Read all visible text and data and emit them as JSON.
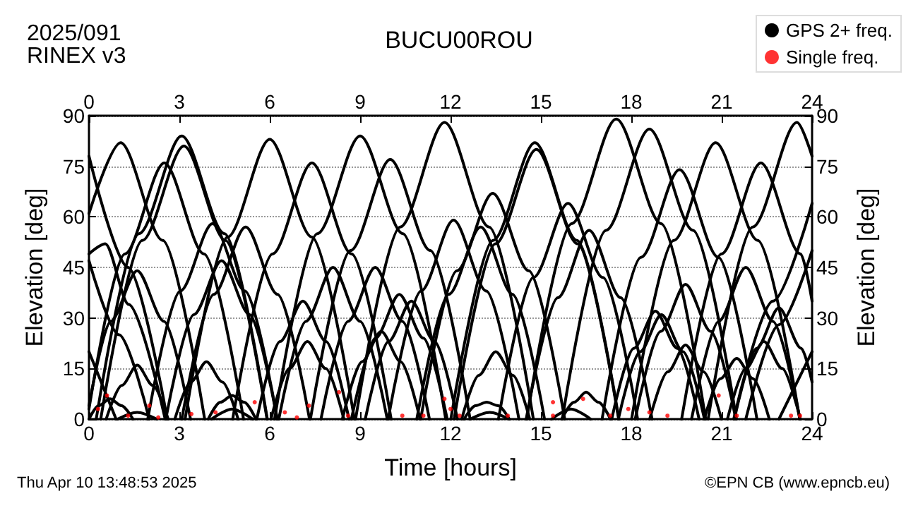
{
  "chart_data": {
    "type": "line",
    "title": "BUCU00ROU",
    "annotations": [
      "2025/091",
      "RINEX v3",
      "Thu Apr 10 13:48:53 2025",
      "©EPN CB (www.epncb.eu)"
    ],
    "xlabel": "Time [hours]",
    "ylabel": "Elevation [deg]",
    "y2label": "Elevation [deg]",
    "xlim": [
      0,
      24
    ],
    "xticks": [
      0,
      3,
      6,
      9,
      12,
      15,
      18,
      21,
      24
    ],
    "x2lim": [
      0,
      24
    ],
    "x2ticks": [
      0,
      3,
      6,
      9,
      12,
      15,
      18,
      21,
      24
    ],
    "ylim": [
      0,
      90
    ],
    "yticks": [
      0,
      15,
      30,
      45,
      60,
      75,
      90
    ],
    "y2lim": [
      0,
      90
    ],
    "y2ticks": [
      0,
      15,
      30,
      45,
      60,
      75,
      90
    ],
    "grid": "y",
    "legend": "top right",
    "line_style": "solid",
    "series": [
      {
        "name": "GPS 2+ freq.",
        "color": "#000000",
        "x": [
          0,
          1.05,
          2.45,
          3.84
        ],
        "values": [
          61,
          82,
          53,
          0
        ]
      },
      {
        "color": "#000000",
        "x": [
          0.24,
          1.66,
          3.08,
          4.5,
          5.92
        ],
        "values": [
          0,
          55,
          84,
          55,
          0
        ]
      },
      {
        "color": "#000000",
        "x": [
          0.39,
          1.77,
          3.15,
          4.53,
          5.91
        ],
        "values": [
          0,
          53,
          81,
          53,
          0
        ]
      },
      {
        "color": "#000000",
        "x": [
          0,
          1.19,
          2.5,
          3.82,
          5.13
        ],
        "values": [
          3,
          49,
          76,
          49,
          0
        ]
      },
      {
        "color": "#000000",
        "x": [
          3.19,
          4.6,
          6.0,
          7.4,
          8.81
        ],
        "values": [
          0,
          54,
          83,
          54,
          0
        ]
      },
      {
        "color": "#000000",
        "x": [
          4.77,
          6.09,
          7.4,
          8.72,
          10.03
        ],
        "values": [
          0,
          49,
          76,
          49,
          0
        ]
      },
      {
        "color": "#000000",
        "x": [
          0,
          0.54,
          1.32,
          2.53
        ],
        "values": [
          49,
          52,
          34,
          0
        ]
      },
      {
        "color": "#000000",
        "x": [
          0,
          0.72,
          1.6,
          2.49,
          3.37
        ],
        "values": [
          4,
          29,
          44,
          29,
          0
        ]
      },
      {
        "color": "#000000",
        "x": [
          1.95,
          3.03,
          4.1,
          5.18,
          6.25
        ],
        "values": [
          0,
          38,
          58,
          38,
          0
        ]
      },
      {
        "color": "#000000",
        "x": [
          3.08,
          4.14,
          5.2,
          6.26,
          7.32
        ],
        "values": [
          0,
          37,
          57,
          37,
          0
        ]
      },
      {
        "color": "#000000",
        "x": [
          2.55,
          3.48,
          4.4,
          5.33,
          6.25
        ],
        "values": [
          0,
          31,
          47,
          31,
          0
        ]
      },
      {
        "color": "#000000",
        "x": [
          6.3,
          7.2,
          8.1,
          9.0,
          9.9
        ],
        "values": [
          0,
          29,
          45,
          29,
          0
        ]
      },
      {
        "color": "#000000",
        "x": [
          5.57,
          6.34,
          7.1,
          7.87,
          8.63
        ],
        "values": [
          0,
          23,
          35,
          23,
          0
        ]
      },
      {
        "color": "#000000",
        "x": [
          6.04,
          6.65,
          7.25,
          7.86,
          8.46
        ],
        "values": [
          0,
          15,
          23,
          15,
          0
        ]
      },
      {
        "color": "#000000",
        "x": [
          0.57,
          1.09,
          1.6,
          2.12,
          2.63
        ],
        "values": [
          0,
          10,
          16,
          10,
          0
        ]
      },
      {
        "color": "#000000",
        "x": [
          2.85,
          3.38,
          3.9,
          4.43,
          4.95
        ],
        "values": [
          0,
          11,
          17,
          11,
          0
        ]
      },
      {
        "color": "#000000",
        "x": [
          0,
          0.32,
          0.7,
          1.08,
          1.46
        ],
        "values": [
          0,
          4,
          6,
          4,
          0
        ]
      },
      {
        "color": "#000000",
        "x": [
          0.95,
          1.6,
          2.25
        ],
        "values": [
          0,
          2,
          0
        ]
      },
      {
        "color": "#000000",
        "x": [
          3.96,
          4.36,
          4.75,
          5.15,
          5.54
        ],
        "values": [
          0,
          5,
          7,
          5,
          0
        ]
      },
      {
        "color": "#000000",
        "x": [
          4.07,
          4.75,
          5.43
        ],
        "values": [
          0,
          3,
          0
        ]
      },
      {
        "color": "#000000",
        "x": [
          6.16,
          7.58,
          9.0,
          10.42,
          11.84
        ],
        "values": [
          0,
          55,
          84,
          55,
          0
        ]
      },
      {
        "color": "#000000",
        "x": [
          7.35,
          8.68,
          10.0,
          11.33,
          12.65
        ],
        "values": [
          0,
          50,
          77,
          50,
          0
        ]
      },
      {
        "color": "#000000",
        "x": [
          8.85,
          10.33,
          11.8,
          13.28,
          14.75
        ],
        "values": [
          0,
          57,
          88,
          57,
          0
        ]
      },
      {
        "color": "#000000",
        "x": [
          12.01,
          13.41,
          14.8,
          16.2,
          17.59
        ],
        "values": [
          0,
          53,
          82,
          53,
          0
        ]
      },
      {
        "color": "#000000",
        "x": [
          12.12,
          13.49,
          14.85,
          16.22,
          17.58
        ],
        "values": [
          0,
          52,
          80,
          52,
          0
        ]
      },
      {
        "color": "#000000",
        "x": [
          11.01,
          12.21,
          13.4,
          14.6,
          15.79
        ],
        "values": [
          0,
          44,
          67,
          44,
          0
        ]
      },
      {
        "color": "#000000",
        "x": [
          9.93,
          11.02,
          12.1,
          13.19,
          14.27
        ],
        "values": [
          0,
          38,
          59,
          38,
          0
        ]
      },
      {
        "color": "#000000",
        "x": [
          10.88,
          11.94,
          13.0,
          14.06,
          15.12
        ],
        "values": [
          0,
          37,
          57,
          37,
          0
        ]
      },
      {
        "color": "#000000",
        "x": [
          13.59,
          14.75,
          15.9,
          17.06,
          18.21
        ],
        "values": [
          0,
          42,
          64,
          42,
          0
        ]
      },
      {
        "color": "#000000",
        "x": [
          7.7,
          8.6,
          9.5,
          10.4,
          11.3
        ],
        "values": [
          0,
          29,
          45,
          29,
          0
        ]
      },
      {
        "color": "#000000",
        "x": [
          8.71,
          9.51,
          10.3,
          11.1,
          11.89
        ],
        "values": [
          0,
          24,
          37,
          24,
          0
        ]
      },
      {
        "color": "#000000",
        "x": [
          9.17,
          9.94,
          10.7,
          11.47,
          12.23
        ],
        "values": [
          0,
          23,
          35,
          23,
          0
        ]
      },
      {
        "color": "#000000",
        "x": [
          8.41,
          9.06,
          9.7,
          10.35,
          10.99
        ],
        "values": [
          0,
          17,
          26,
          17,
          0
        ]
      },
      {
        "color": "#000000",
        "x": [
          12.37,
          12.94,
          13.5,
          14.07,
          14.63
        ],
        "values": [
          0,
          13,
          20,
          13,
          0
        ]
      },
      {
        "color": "#000000",
        "x": [
          12.45,
          12.83,
          13.2,
          13.58,
          13.95
        ],
        "values": [
          0,
          4,
          5,
          4,
          0
        ]
      },
      {
        "color": "#000000",
        "x": [
          12.65,
          13.3,
          13.95
        ],
        "values": [
          0,
          2,
          0
        ]
      },
      {
        "color": "#000000",
        "x": [
          14.53,
          16.02,
          17.5,
          18.99,
          20.47
        ],
        "values": [
          0,
          58,
          89,
          58,
          0
        ]
      },
      {
        "color": "#000000",
        "x": [
          15.71,
          17.16,
          18.6,
          20.05,
          21.49
        ],
        "values": [
          0,
          56,
          86,
          56,
          0
        ]
      },
      {
        "color": "#000000",
        "x": [
          17.03,
          18.32,
          19.6,
          20.89,
          22.17
        ],
        "values": [
          0,
          48,
          74,
          48,
          0
        ]
      },
      {
        "color": "#000000",
        "x": [
          18.01,
          19.41,
          20.8,
          22.2,
          23.59
        ],
        "values": [
          0,
          53,
          82,
          53,
          0
        ]
      },
      {
        "color": "#000000",
        "x": [
          19.67,
          20.99,
          22.3,
          23.62,
          24
        ],
        "values": [
          0,
          49,
          76,
          49,
          35
        ]
      },
      {
        "color": "#000000",
        "x": [
          20.55,
          22.03,
          23.5,
          24
        ],
        "values": [
          0,
          57,
          88,
          78
        ]
      },
      {
        "color": "#000000",
        "x": [
          14.51,
          15.56,
          16.6,
          17.65,
          18.69
        ],
        "values": [
          0,
          36,
          56,
          36,
          0
        ]
      },
      {
        "color": "#000000",
        "x": [
          18.13,
          18.97,
          19.8,
          20.64,
          21.47
        ],
        "values": [
          0,
          26,
          40,
          26,
          0
        ]
      },
      {
        "color": "#000000",
        "x": [
          17.35,
          18.08,
          18.8,
          19.53,
          20.25
        ],
        "values": [
          0,
          21,
          32,
          21,
          0
        ]
      },
      {
        "color": "#000000",
        "x": [
          17.57,
          18.29,
          19.0,
          19.72,
          20.43
        ],
        "values": [
          0,
          20,
          31,
          20,
          0
        ]
      },
      {
        "color": "#000000",
        "x": [
          20.0,
          20.9,
          21.8,
          22.7,
          23.6
        ],
        "values": [
          0,
          29,
          45,
          29,
          0
        ]
      },
      {
        "color": "#000000",
        "x": [
          18.61,
          19.21,
          19.8,
          20.4,
          20.99
        ],
        "values": [
          0,
          14,
          22,
          14,
          0
        ]
      },
      {
        "color": "#000000",
        "x": [
          20.42,
          20.96,
          21.5,
          22.04,
          22.58
        ],
        "values": [
          0,
          12,
          18,
          12,
          0
        ]
      },
      {
        "color": "#000000",
        "x": [
          21.19,
          21.8,
          22.4,
          23.01,
          23.61
        ],
        "values": [
          0,
          15,
          23,
          15,
          0
        ]
      },
      {
        "color": "#000000",
        "x": [
          21.42,
          22.16,
          22.9,
          23.64,
          24
        ],
        "values": [
          0,
          21,
          33,
          21,
          11
        ]
      },
      {
        "color": "#000000",
        "x": [
          15.69,
          16.1,
          16.5,
          16.91,
          17.31
        ],
        "values": [
          0,
          5,
          8,
          5,
          0
        ]
      },
      {
        "color": "#000000",
        "x": [
          15.35,
          16.0,
          16.65
        ],
        "values": [
          0,
          3,
          0
        ]
      },
      {
        "color": "#000000",
        "x": [
          21.4,
          22.7,
          24
        ],
        "values": [
          0,
          35,
          64
        ]
      },
      {
        "color": "#000000",
        "x": [
          21.8,
          22.9,
          24
        ],
        "values": [
          0,
          28,
          50
        ]
      },
      {
        "color": "#000000",
        "x": [
          22.9,
          24
        ],
        "values": [
          0,
          20
        ]
      },
      {
        "color": "#000000",
        "x": [
          0,
          1.3,
          2.6
        ],
        "values": [
          78,
          45,
          0
        ]
      },
      {
        "color": "#000000",
        "x": [
          0,
          1.0,
          2.0
        ],
        "values": [
          47,
          25,
          0
        ]
      },
      {
        "color": "#000000",
        "x": [
          0,
          0.9
        ],
        "values": [
          20,
          0
        ]
      },
      {
        "name": "Single freq.",
        "type": "scatter",
        "color": "#ff0000",
        "marker": "circle",
        "x": [
          0.3,
          0.6,
          1.3,
          2.0,
          2.3,
          3.4,
          4.2,
          5.5,
          6.5,
          6.9,
          7.3,
          8.3,
          8.6,
          10.4,
          11.1,
          11.8,
          12.0,
          12.3,
          13.9,
          15.4,
          15.4,
          16.4,
          17.3,
          17.9,
          18.6,
          19.2,
          20.9,
          21.5,
          23.3,
          23.6
        ],
        "values": [
          3,
          7,
          1,
          4,
          0.5,
          1.5,
          2,
          5,
          2,
          0.5,
          4,
          8,
          1,
          1,
          1,
          6,
          3,
          1,
          1,
          1,
          5,
          6,
          1,
          3,
          2,
          1,
          7,
          1,
          1,
          1
        ]
      }
    ]
  }
}
